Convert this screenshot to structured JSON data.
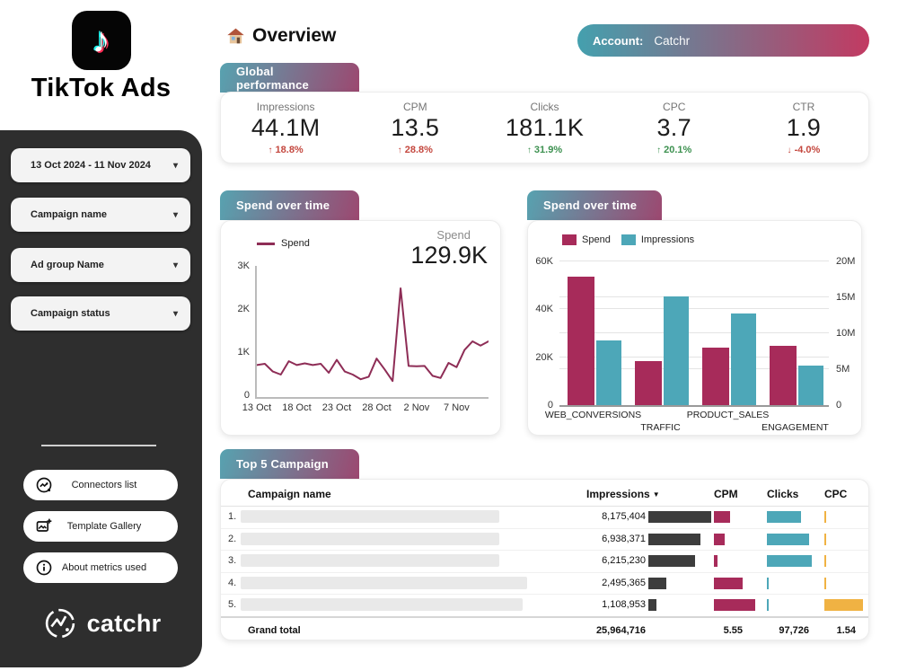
{
  "brand": {
    "name": "TikTok Ads",
    "icon": "tiktok-note-icon"
  },
  "sidebar": {
    "filters": [
      {
        "label": "13 Oct 2024 - 11 Nov 2024"
      },
      {
        "label": "Campaign name"
      },
      {
        "label": "Ad group Name"
      },
      {
        "label": "Campaign status"
      }
    ],
    "buttons": [
      {
        "label": "Connectors list",
        "icon": "chart-connector-icon"
      },
      {
        "label": "Template Gallery",
        "icon": "image-plus-icon"
      },
      {
        "label": "About metrics used",
        "icon": "info-icon"
      }
    ],
    "footer_logo": "catchr"
  },
  "header": {
    "icon": "home-icon",
    "title": "Overview",
    "account_label": "Account:",
    "account_value": "Catchr"
  },
  "sections": {
    "global_performance": "Global performance",
    "spend_line": "Spend over time",
    "spend_bar": "Spend over time",
    "top_campaigns": "Top 5 Campaign"
  },
  "metrics": [
    {
      "label": "Impressions",
      "value": "44.1M",
      "change": "18.8%",
      "direction": "up",
      "sentiment": "negative"
    },
    {
      "label": "CPM",
      "value": "13.5",
      "change": "28.8%",
      "direction": "up",
      "sentiment": "negative"
    },
    {
      "label": "Clicks",
      "value": "181.1K",
      "change": "31.9%",
      "direction": "up",
      "sentiment": "positive"
    },
    {
      "label": "CPC",
      "value": "3.7",
      "change": "20.1%",
      "direction": "up",
      "sentiment": "positive"
    },
    {
      "label": "CTR",
      "value": "1.9",
      "change": "-4.0%",
      "direction": "down",
      "sentiment": "negative"
    }
  ],
  "chart_data": [
    {
      "type": "line",
      "title": "Spend over time",
      "legend": [
        "Spend"
      ],
      "kpi_label": "Spend",
      "kpi_value": "129.9K",
      "ylim": [
        0,
        3000
      ],
      "yticks": [
        "0",
        "1K",
        "2K",
        "3K"
      ],
      "xticks": [
        "13 Oct",
        "18 Oct",
        "23 Oct",
        "28 Oct",
        "2 Nov",
        "7 Nov"
      ],
      "xtick_indices": [
        0,
        5,
        10,
        15,
        20,
        25
      ],
      "values": [
        700,
        730,
        550,
        480,
        790,
        700,
        740,
        700,
        730,
        520,
        820,
        550,
        480,
        370,
        430,
        850,
        600,
        330,
        2480,
        680,
        670,
        680,
        450,
        400,
        750,
        650,
        1050,
        1250,
        1150,
        1250
      ]
    },
    {
      "type": "bar",
      "title": "Spend over time",
      "categories": [
        "WEB_CONVERSIONS",
        "TRAFFIC",
        "PRODUCT_SALES",
        "ENGAGEMENT"
      ],
      "series": [
        {
          "name": "Spend",
          "axis": "left",
          "values": [
            53600,
            18400,
            24000,
            24800
          ]
        },
        {
          "name": "Impressions",
          "axis": "right",
          "values": [
            9000000,
            15100000,
            12700000,
            5500000
          ]
        }
      ],
      "left_axis": {
        "ticks": [
          "0",
          "20K",
          "40K",
          "60K"
        ],
        "max": 60000
      },
      "right_axis": {
        "ticks": [
          "0",
          "5M",
          "10M",
          "15M",
          "20M"
        ],
        "max": 20000000
      },
      "grid": true,
      "legend_position": "top-left"
    },
    {
      "type": "table",
      "title": "Top 5 Campaign",
      "columns": [
        "Campaign name",
        "Impressions",
        "CPM",
        "Clicks",
        "CPC"
      ],
      "sort_column": "Impressions",
      "sort_direction": "desc",
      "rows": [
        {
          "rank": "1.",
          "impressions": "8,175,404",
          "imp_frac": 1.0,
          "cpm_frac": 0.39,
          "clicks_frac": 0.76,
          "cpc_frac": 0.05,
          "name_w": 288
        },
        {
          "rank": "2.",
          "impressions": "6,938,371",
          "imp_frac": 0.83,
          "cpm_frac": 0.26,
          "clicks_frac": 0.94,
          "cpc_frac": 0.05,
          "name_w": 288
        },
        {
          "rank": "3.",
          "impressions": "6,215,230",
          "imp_frac": 0.74,
          "cpm_frac": 0.09,
          "clicks_frac": 1.0,
          "cpc_frac": 0.05,
          "name_w": 288
        },
        {
          "rank": "4.",
          "impressions": "2,495,365",
          "imp_frac": 0.29,
          "cpm_frac": 0.7,
          "clicks_frac": 0.04,
          "cpc_frac": 0.05,
          "name_w": 319
        },
        {
          "rank": "5.",
          "impressions": "1,108,953",
          "imp_frac": 0.13,
          "cpm_frac": 1.0,
          "clicks_frac": 0.04,
          "cpc_frac": 1.0,
          "name_w": 314
        }
      ],
      "grand_total": {
        "label": "Grand total",
        "impressions": "25,964,716",
        "cpm": "5.55",
        "clicks": "97,726",
        "cpc": "1.54"
      }
    }
  ],
  "colors": {
    "crimson": "#a72b5a",
    "teal": "#4da7b8",
    "yellow": "#f0b243",
    "dark_bar": "#3d3d3d",
    "line": "#8e2d56",
    "negative_red": "#c4473e",
    "positive_green": "#3d9150",
    "sidebar": "#2e2e2e",
    "tab_gradient_start": "#57a2b0",
    "tab_gradient_end": "#9c4870",
    "tiktok_cyan": "#25f4ee",
    "tiktok_red": "#fe2c55"
  }
}
